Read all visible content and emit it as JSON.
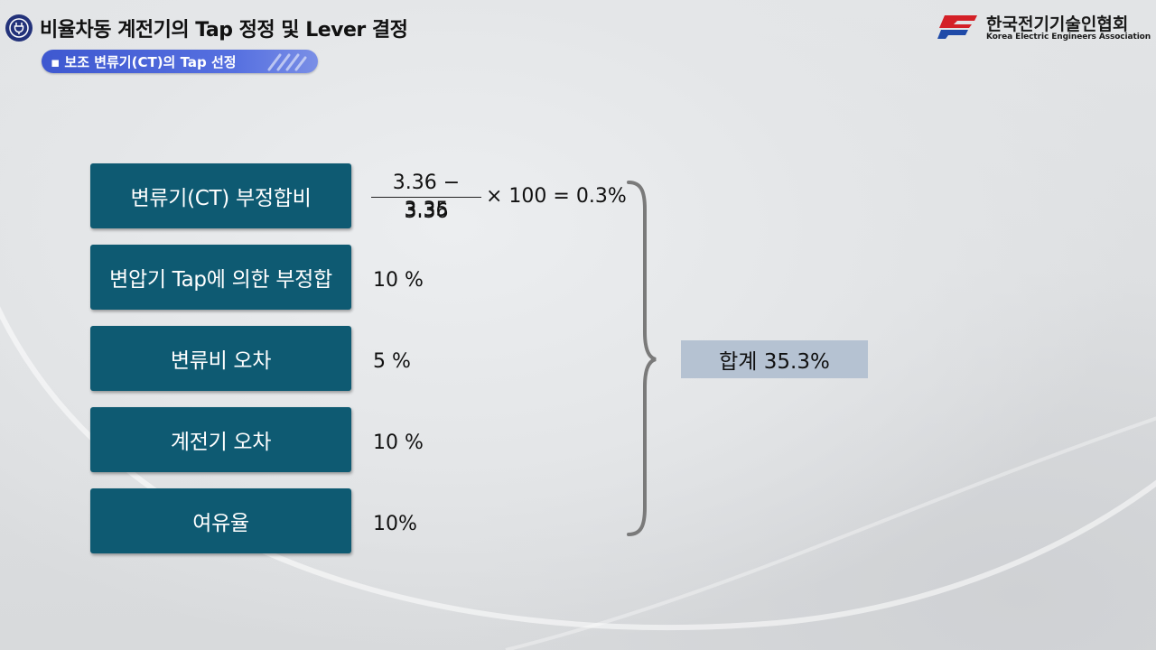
{
  "header": {
    "title": "비율차동 계전기의 Tap 정정 및 Lever 결정",
    "subtitle": "▪ 보조 변류기(CT)의 Tap 선정"
  },
  "logo": {
    "name_ko": "한국전기기술인협회",
    "name_en": "Korea Electric Engineers Association"
  },
  "rows": [
    {
      "label": "변류기(CT) 부정합비",
      "fraction": {
        "numerator": "3.36 − 3.35",
        "denominator": "3.36"
      },
      "value": "× 100 = 0.3%"
    },
    {
      "label": "변압기 Tap에 의한 부정합",
      "value": "10 %"
    },
    {
      "label": "변류비 오차",
      "value": "5 %"
    },
    {
      "label": "계전기 오차",
      "value": "10 %"
    },
    {
      "label": "여유율",
      "value": "10%"
    }
  ],
  "total": "합계 35.3%",
  "colors": {
    "box": "#0e5a72",
    "total_box": "#b5c2d2",
    "pill": "#4a63d8"
  }
}
